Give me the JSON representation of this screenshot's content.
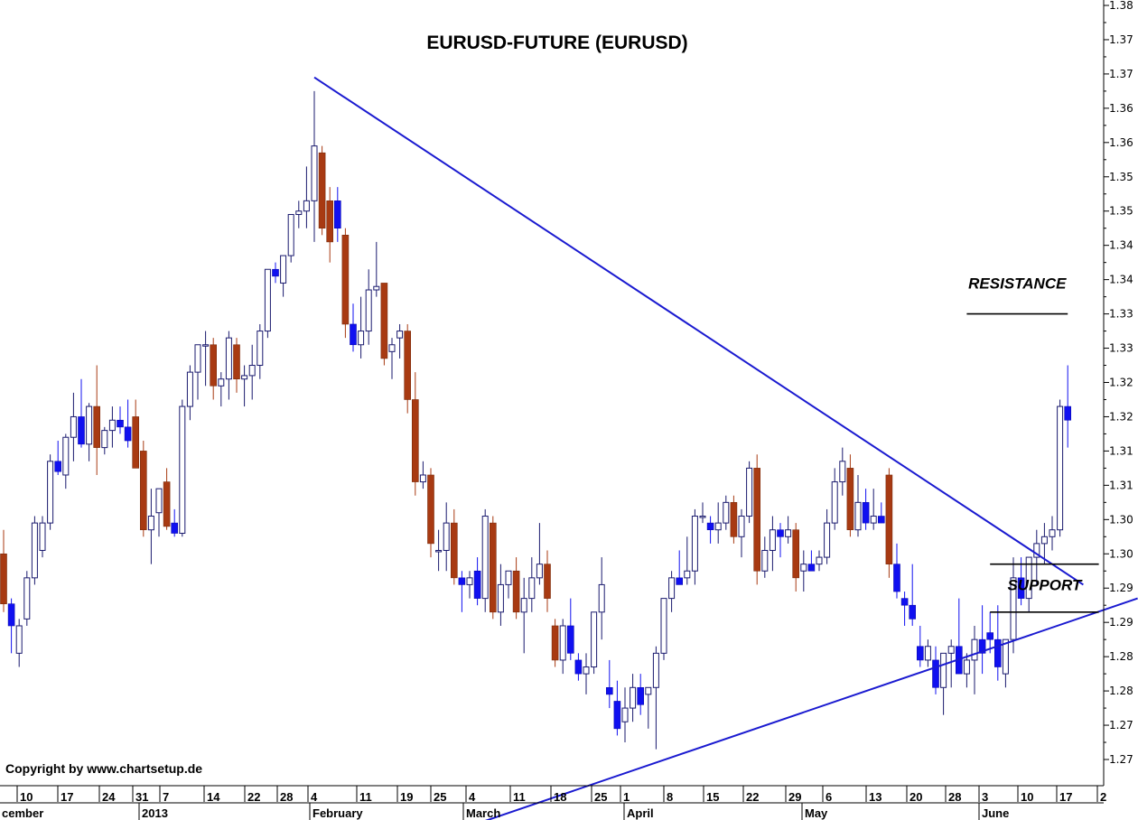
{
  "chart_data": {
    "type": "candlestick",
    "title": "EURUSD-FUTURE  (EURUSD)",
    "copyright": "Copyright by www.chartsetup.de",
    "colors": {
      "up_outline": "#1a1a6e",
      "down_fill": "#1010f0",
      "down_large_fill": "#a83a12",
      "trendline": "#1a1ad0",
      "level_line": "#000000"
    },
    "y_axis": {
      "ylim": [
        1.262,
        1.384
      ],
      "ticks": [
        1.38,
        1.37,
        1.37,
        1.36,
        1.36,
        1.35,
        1.35,
        1.34,
        1.34,
        1.33,
        1.33,
        1.32,
        1.32,
        1.31,
        1.31,
        1.3,
        1.3,
        1.29,
        1.29,
        1.28,
        1.28,
        1.27,
        1.27
      ],
      "tick_values": [
        1.3825,
        1.3775,
        1.3725,
        1.3675,
        1.3625,
        1.3575,
        1.3525,
        1.3475,
        1.3425,
        1.3375,
        1.3325,
        1.3275,
        1.3225,
        1.3175,
        1.3125,
        1.3075,
        1.3025,
        1.2975,
        1.2925,
        1.2875,
        1.2825,
        1.2775,
        1.2725
      ]
    },
    "x_axis": {
      "date_ticks": [
        "10",
        "17",
        "24",
        "31",
        "7",
        "14",
        "22",
        "28",
        "4",
        "11",
        "19",
        "25",
        "4",
        "11",
        "18",
        "25",
        "1",
        "8",
        "15",
        "22",
        "29",
        "6",
        "13",
        "20",
        "28",
        "3",
        "10",
        "17",
        "2"
      ],
      "month_labels": [
        "cember",
        "2013",
        "February",
        "March",
        "April",
        "May",
        "June"
      ]
    },
    "candles_ohlc": [
      [
        1.3025,
        1.306,
        1.294,
        1.2952
      ],
      [
        1.2952,
        1.296,
        1.288,
        1.292
      ],
      [
        1.288,
        1.293,
        1.286,
        1.292
      ],
      [
        1.293,
        1.3,
        1.292,
        1.299
      ],
      [
        1.299,
        1.308,
        1.298,
        1.307
      ],
      [
        1.303,
        1.308,
        1.302,
        1.307
      ],
      [
        1.307,
        1.317,
        1.306,
        1.316
      ],
      [
        1.316,
        1.319,
        1.314,
        1.3145
      ],
      [
        1.314,
        1.32,
        1.312,
        1.3195
      ],
      [
        1.3195,
        1.326,
        1.316,
        1.3225
      ],
      [
        1.3225,
        1.328,
        1.318,
        1.3185
      ],
      [
        1.3185,
        1.3245,
        1.316,
        1.324
      ],
      [
        1.324,
        1.33,
        1.314,
        1.318
      ],
      [
        1.318,
        1.321,
        1.317,
        1.3205
      ],
      [
        1.3205,
        1.324,
        1.318,
        1.322
      ],
      [
        1.322,
        1.324,
        1.32,
        1.321
      ],
      [
        1.321,
        1.325,
        1.318,
        1.319
      ],
      [
        1.3225,
        1.325,
        1.315,
        1.315
      ],
      [
        1.3175,
        1.319,
        1.305,
        1.306
      ],
      [
        1.306,
        1.312,
        1.301,
        1.308
      ],
      [
        1.3085,
        1.312,
        1.305,
        1.312
      ],
      [
        1.313,
        1.315,
        1.306,
        1.3065
      ],
      [
        1.307,
        1.309,
        1.305,
        1.3055
      ],
      [
        1.3055,
        1.325,
        1.305,
        1.324
      ],
      [
        1.324,
        1.33,
        1.322,
        1.329
      ],
      [
        1.329,
        1.333,
        1.325,
        1.333
      ],
      [
        1.333,
        1.335,
        1.327,
        1.333
      ],
      [
        1.333,
        1.334,
        1.325,
        1.327
      ],
      [
        1.327,
        1.329,
        1.324,
        1.328
      ],
      [
        1.328,
        1.335,
        1.325,
        1.334
      ],
      [
        1.333,
        1.334,
        1.326,
        1.328
      ],
      [
        1.328,
        1.33,
        1.324,
        1.3285
      ],
      [
        1.3285,
        1.333,
        1.325,
        1.33
      ],
      [
        1.33,
        1.336,
        1.328,
        1.335
      ],
      [
        1.335,
        1.344,
        1.334,
        1.344
      ],
      [
        1.344,
        1.345,
        1.342,
        1.343
      ],
      [
        1.342,
        1.346,
        1.34,
        1.346
      ],
      [
        1.346,
        1.352,
        1.345,
        1.352
      ],
      [
        1.352,
        1.354,
        1.35,
        1.3525
      ],
      [
        1.3525,
        1.359,
        1.35,
        1.354
      ],
      [
        1.354,
        1.37,
        1.348,
        1.362
      ],
      [
        1.361,
        1.362,
        1.349,
        1.35
      ],
      [
        1.354,
        1.356,
        1.345,
        1.348
      ],
      [
        1.354,
        1.356,
        1.348,
        1.35
      ],
      [
        1.349,
        1.35,
        1.334,
        1.336
      ],
      [
        1.336,
        1.339,
        1.332,
        1.333
      ],
      [
        1.333,
        1.34,
        1.331,
        1.335
      ],
      [
        1.335,
        1.344,
        1.333,
        1.341
      ],
      [
        1.341,
        1.348,
        1.34,
        1.3415
      ],
      [
        1.342,
        1.342,
        1.33,
        1.331
      ],
      [
        1.332,
        1.334,
        1.328,
        1.333
      ],
      [
        1.334,
        1.336,
        1.331,
        1.335
      ],
      [
        1.335,
        1.336,
        1.323,
        1.325
      ],
      [
        1.325,
        1.329,
        1.311,
        1.313
      ],
      [
        1.313,
        1.316,
        1.312,
        1.314
      ],
      [
        1.314,
        1.315,
        1.302,
        1.304
      ],
      [
        1.303,
        1.306,
        1.3,
        1.303
      ],
      [
        1.303,
        1.31,
        1.3,
        1.307
      ],
      [
        1.307,
        1.309,
        1.298,
        1.299
      ],
      [
        1.299,
        1.3,
        1.294,
        1.298
      ],
      [
        1.298,
        1.3,
        1.296,
        1.299
      ],
      [
        1.3,
        1.302,
        1.295,
        1.296
      ],
      [
        1.296,
        1.309,
        1.294,
        1.308
      ],
      [
        1.307,
        1.308,
        1.293,
        1.294
      ],
      [
        1.294,
        1.301,
        1.292,
        1.298
      ],
      [
        1.298,
        1.3,
        1.296,
        1.3
      ],
      [
        1.3,
        1.302,
        1.293,
        1.294
      ],
      [
        1.294,
        1.299,
        1.288,
        1.296
      ],
      [
        1.296,
        1.302,
        1.294,
        1.299
      ],
      [
        1.299,
        1.307,
        1.298,
        1.301
      ],
      [
        1.301,
        1.303,
        1.294,
        1.296
      ],
      [
        1.292,
        1.293,
        1.286,
        1.287
      ],
      [
        1.287,
        1.293,
        1.285,
        1.292
      ],
      [
        1.292,
        1.296,
        1.287,
        1.288
      ],
      [
        1.287,
        1.288,
        1.284,
        1.285
      ],
      [
        1.285,
        1.288,
        1.282,
        1.286
      ],
      [
        1.286,
        1.294,
        1.285,
        1.294
      ],
      [
        1.294,
        1.302,
        1.29,
        1.298
      ],
      [
        1.283,
        1.287,
        1.28,
        1.282
      ],
      [
        1.281,
        1.284,
        1.276,
        1.277
      ],
      [
        1.278,
        1.283,
        1.275,
        1.28
      ],
      [
        1.28,
        1.285,
        1.278,
        1.283
      ],
      [
        1.283,
        1.285,
        1.279,
        1.2805
      ],
      [
        1.282,
        1.283,
        1.277,
        1.283
      ],
      [
        1.283,
        1.289,
        1.274,
        1.288
      ],
      [
        1.288,
        1.296,
        1.287,
        1.296
      ],
      [
        1.296,
        1.3,
        1.294,
        1.299
      ],
      [
        1.299,
        1.303,
        1.298,
        1.298
      ],
      [
        1.299,
        1.305,
        1.298,
        1.3
      ],
      [
        1.3,
        1.309,
        1.298,
        1.308
      ],
      [
        1.308,
        1.31,
        1.307,
        1.308
      ],
      [
        1.307,
        1.308,
        1.304,
        1.306
      ],
      [
        1.306,
        1.31,
        1.304,
        1.307
      ],
      [
        1.307,
        1.311,
        1.306,
        1.31
      ],
      [
        1.31,
        1.311,
        1.304,
        1.305
      ],
      [
        1.305,
        1.309,
        1.302,
        1.308
      ],
      [
        1.308,
        1.316,
        1.307,
        1.315
      ],
      [
        1.315,
        1.317,
        1.298,
        1.3
      ],
      [
        1.3,
        1.305,
        1.299,
        1.303
      ],
      [
        1.303,
        1.308,
        1.3,
        1.306
      ],
      [
        1.306,
        1.307,
        1.302,
        1.305
      ],
      [
        1.305,
        1.308,
        1.304,
        1.306
      ],
      [
        1.306,
        1.307,
        1.297,
        1.299
      ],
      [
        1.3,
        1.303,
        1.297,
        1.301
      ],
      [
        1.301,
        1.303,
        1.3,
        1.3
      ],
      [
        1.301,
        1.303,
        1.3,
        1.302
      ],
      [
        1.302,
        1.309,
        1.301,
        1.307
      ],
      [
        1.307,
        1.315,
        1.306,
        1.313
      ],
      [
        1.313,
        1.318,
        1.311,
        1.316
      ],
      [
        1.315,
        1.317,
        1.305,
        1.306
      ],
      [
        1.306,
        1.314,
        1.305,
        1.31
      ],
      [
        1.31,
        1.312,
        1.306,
        1.307
      ],
      [
        1.307,
        1.312,
        1.306,
        1.308
      ],
      [
        1.308,
        1.31,
        1.307,
        1.307
      ],
      [
        1.314,
        1.315,
        1.299,
        1.301
      ],
      [
        1.301,
        1.304,
        1.296,
        1.297
      ],
      [
        1.296,
        1.297,
        1.292,
        1.295
      ],
      [
        1.295,
        1.301,
        1.292,
        1.293
      ],
      [
        1.289,
        1.292,
        1.286,
        1.287
      ],
      [
        1.287,
        1.29,
        1.286,
        1.289
      ],
      [
        1.287,
        1.289,
        1.282,
        1.283
      ],
      [
        1.283,
        1.288,
        1.279,
        1.288
      ],
      [
        1.288,
        1.29,
        1.283,
        1.289
      ],
      [
        1.289,
        1.296,
        1.285,
        1.285
      ],
      [
        1.285,
        1.288,
        1.283,
        1.287
      ],
      [
        1.287,
        1.292,
        1.282,
        1.29
      ],
      [
        1.29,
        1.295,
        1.285,
        1.288
      ],
      [
        1.291,
        1.294,
        1.288,
        1.29
      ],
      [
        1.29,
        1.295,
        1.284,
        1.286
      ],
      [
        1.285,
        1.29,
        1.283,
        1.29
      ],
      [
        1.29,
        1.302,
        1.288,
        1.299
      ],
      [
        1.299,
        1.302,
        1.295,
        1.296
      ],
      [
        1.296,
        1.302,
        1.294,
        1.302
      ],
      [
        1.302,
        1.306,
        1.298,
        1.304
      ],
      [
        1.304,
        1.307,
        1.301,
        1.305
      ],
      [
        1.305,
        1.308,
        1.303,
        1.306
      ],
      [
        1.306,
        1.325,
        1.305,
        1.324
      ],
      [
        1.324,
        1.33,
        1.318,
        1.322
      ]
    ],
    "trendlines": [
      {
        "name": "descending-resistance-trendline",
        "from": [
          40,
          1.372
        ],
        "to": [
          139,
          1.298
        ]
      },
      {
        "name": "ascending-support-trendline",
        "from": [
          58,
          1.262
        ],
        "to": [
          146,
          1.296
        ]
      }
    ],
    "levels": [
      {
        "label": "RESISTANCE",
        "price": 1.3375,
        "from_index": 124,
        "to_index": 137
      },
      {
        "label": "SUPPORT",
        "price": 1.301,
        "from_index": 127,
        "to_index": 141
      },
      {
        "label": "",
        "price": 1.294,
        "from_index": 127,
        "to_index": 141
      }
    ]
  }
}
